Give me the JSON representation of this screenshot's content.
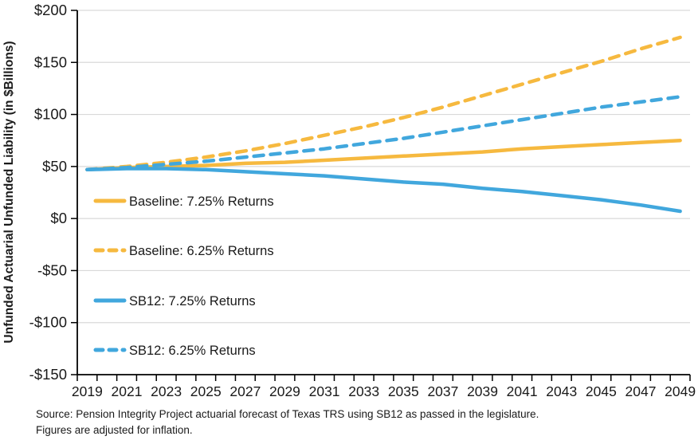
{
  "chart_data": {
    "type": "line",
    "title": "",
    "xlabel": "",
    "ylabel": "Unfunded Actuarial Unfunded Liability (in $Billions)",
    "ylim": [
      -150,
      200
    ],
    "ytick_values": [
      200,
      150,
      100,
      50,
      0,
      -50,
      -100,
      -150
    ],
    "ytick_labels": [
      "$200",
      "$150",
      "$100",
      "$50",
      "$0",
      "-$50",
      "-$100",
      "-$150"
    ],
    "x_years": [
      2019,
      2021,
      2023,
      2025,
      2027,
      2029,
      2031,
      2033,
      2035,
      2037,
      2039,
      2041,
      2043,
      2045,
      2047,
      2049
    ],
    "minor_x_tick_every_years": 1,
    "grid": true,
    "legend_position": "inside-left",
    "colors": {
      "gold": "#F6B93F",
      "blue": "#41A7DD",
      "gridline": "#D9D9D9",
      "axis": "#000000",
      "text": "#1A1A1A"
    },
    "series": [
      {
        "name": "Baseline: 7.25% Returns",
        "color": "#F6B93F",
        "style": "solid",
        "values": [
          47,
          49,
          50,
          51,
          53,
          54,
          56,
          58,
          60,
          62,
          64,
          67,
          69,
          71,
          73,
          75
        ]
      },
      {
        "name": "Baseline: 6.25% Returns",
        "color": "#F6B93F",
        "style": "dashed",
        "values": [
          47,
          50,
          54,
          59,
          65,
          72,
          80,
          88,
          97,
          107,
          118,
          129,
          140,
          151,
          163,
          174
        ]
      },
      {
        "name": "SB12: 7.25% Returns",
        "color": "#41A7DD",
        "style": "solid",
        "values": [
          47,
          48,
          48,
          47,
          45,
          43,
          41,
          38,
          35,
          33,
          29,
          26,
          22,
          18,
          13,
          7
        ]
      },
      {
        "name": "SB12: 6.25% Returns",
        "color": "#41A7DD",
        "style": "dashed",
        "values": [
          47,
          49,
          52,
          55,
          59,
          63,
          67,
          72,
          77,
          83,
          89,
          95,
          101,
          107,
          112,
          117
        ]
      }
    ]
  },
  "source": {
    "line1": "Source: Pension Integrity Project actuarial forecast of Texas TRS using SB12 as passed in the legislature.",
    "line2": "Figures are adjusted for inflation."
  }
}
